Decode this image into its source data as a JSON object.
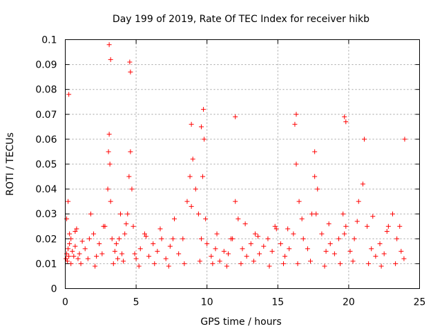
{
  "chart_data": {
    "type": "scatter",
    "title": "Day 199 of 2019, Rate Of TEC Index for receiver hikb",
    "xlabel": "GPS time / hours",
    "ylabel": "ROTI / TECUs",
    "xlim": [
      0,
      25
    ],
    "ylim": [
      0,
      0.1
    ],
    "x_ticks": [
      0,
      5,
      10,
      15,
      20,
      25
    ],
    "y_ticks": [
      0,
      0.01,
      0.02,
      0.03,
      0.04,
      0.05,
      0.06,
      0.07,
      0.08,
      0.09,
      0.1
    ],
    "x_tick_labels": [
      "0",
      "5",
      "10",
      "15",
      "20",
      "25"
    ],
    "y_tick_labels": [
      "0",
      "0.01",
      "0.02",
      "0.03",
      "0.04",
      "0.05",
      "0.06",
      "0.07",
      "0.08",
      "0.09",
      "0.1"
    ],
    "grid": true,
    "marker": "+",
    "color": "#ff0000",
    "series": [
      {
        "name": "ROTI",
        "x": [
          0.05,
          0.1,
          0.15,
          0.2,
          0.25,
          0.3,
          0.1,
          0.2,
          0.3,
          0.4,
          0.5,
          0.6,
          0.7,
          0.8,
          0.9,
          1.0,
          1.2,
          1.4,
          1.6,
          1.8,
          2.0,
          2.2,
          2.4,
          2.6,
          2.8,
          3.0,
          3.05,
          3.1,
          3.15,
          3.2,
          3.3,
          3.5,
          3.6,
          3.7,
          3.8,
          4.0,
          4.2,
          4.4,
          4.5,
          4.6,
          4.7,
          4.8,
          4.9,
          5.0,
          5.3,
          5.6,
          5.9,
          6.2,
          6.5,
          6.8,
          7.1,
          7.4,
          7.7,
          8.0,
          8.3,
          8.6,
          8.8,
          9.0,
          9.2,
          9.4,
          9.6,
          9.7,
          9.8,
          10.0,
          10.3,
          10.6,
          10.9,
          11.2,
          11.5,
          11.8,
          12.0,
          12.2,
          12.5,
          12.8,
          13.1,
          13.4,
          13.7,
          14.0,
          14.3,
          14.6,
          14.9,
          15.2,
          15.5,
          15.8,
          16.1,
          16.3,
          16.5,
          16.8,
          17.1,
          17.4,
          17.6,
          17.8,
          18.1,
          18.4,
          18.7,
          19.0,
          19.3,
          19.6,
          19.8,
          20.1,
          20.4,
          20.7,
          21.0,
          21.3,
          21.6,
          21.9,
          22.2,
          22.5,
          22.8,
          23.1,
          23.4,
          23.7,
          23.9,
          0.4,
          1.1,
          2.1,
          3.4,
          4.1,
          5.2,
          6.3,
          7.3,
          8.4,
          9.5,
          10.4,
          11.4,
          12.4,
          13.3,
          14.4,
          15.4,
          16.4,
          17.3,
          18.3,
          19.4,
          20.3,
          21.4,
          22.3,
          23.3,
          0.7,
          1.7,
          2.7,
          3.9,
          4.3,
          5.7,
          6.7,
          7.6,
          8.9,
          9.9,
          10.7,
          11.7,
          12.7,
          13.6,
          14.8,
          15.7,
          16.7,
          17.7,
          18.6,
          19.7,
          20.6,
          21.7,
          22.7,
          23.6,
          0.25,
          3.1,
          4.55,
          9.75,
          16.3,
          19.7,
          21.1,
          12.0,
          8.9,
          17.6,
          23.95,
          3.2,
          4.6,
          9.6,
          16.2,
          19.8
        ],
        "y": [
          0.012,
          0.014,
          0.011,
          0.016,
          0.013,
          0.018,
          0.028,
          0.035,
          0.022,
          0.02,
          0.015,
          0.013,
          0.017,
          0.024,
          0.012,
          0.014,
          0.019,
          0.016,
          0.012,
          0.03,
          0.022,
          0.013,
          0.018,
          0.014,
          0.025,
          0.04,
          0.055,
          0.062,
          0.05,
          0.035,
          0.02,
          0.015,
          0.018,
          0.012,
          0.02,
          0.014,
          0.022,
          0.03,
          0.045,
          0.055,
          0.04,
          0.025,
          0.014,
          0.012,
          0.016,
          0.022,
          0.013,
          0.018,
          0.015,
          0.02,
          0.012,
          0.017,
          0.028,
          0.014,
          0.02,
          0.035,
          0.045,
          0.052,
          0.04,
          0.03,
          0.02,
          0.045,
          0.06,
          0.018,
          0.013,
          0.016,
          0.011,
          0.015,
          0.014,
          0.02,
          0.035,
          0.028,
          0.016,
          0.013,
          0.018,
          0.022,
          0.014,
          0.017,
          0.02,
          0.015,
          0.024,
          0.018,
          0.013,
          0.016,
          0.022,
          0.05,
          0.035,
          0.02,
          0.016,
          0.03,
          0.045,
          0.04,
          0.022,
          0.015,
          0.018,
          0.014,
          0.02,
          0.03,
          0.025,
          0.015,
          0.02,
          0.035,
          0.042,
          0.025,
          0.016,
          0.013,
          0.018,
          0.014,
          0.025,
          0.03,
          0.02,
          0.015,
          0.012,
          0.01,
          0.01,
          0.009,
          0.01,
          0.011,
          0.009,
          0.01,
          0.009,
          0.01,
          0.011,
          0.01,
          0.009,
          0.01,
          0.011,
          0.009,
          0.01,
          0.01,
          0.011,
          0.009,
          0.01,
          0.011,
          0.01,
          0.009,
          0.01,
          0.023,
          0.02,
          0.025,
          0.03,
          0.026,
          0.021,
          0.024,
          0.02,
          0.033,
          0.028,
          0.022,
          0.02,
          0.026,
          0.021,
          0.025,
          0.024,
          0.028,
          0.03,
          0.026,
          0.022,
          0.027,
          0.029,
          0.023,
          0.025,
          0.078,
          0.098,
          0.091,
          0.072,
          0.07,
          0.069,
          0.06,
          0.069,
          0.066,
          0.055,
          0.06,
          0.092,
          0.087,
          0.065,
          0.066,
          0.067
        ]
      }
    ]
  }
}
